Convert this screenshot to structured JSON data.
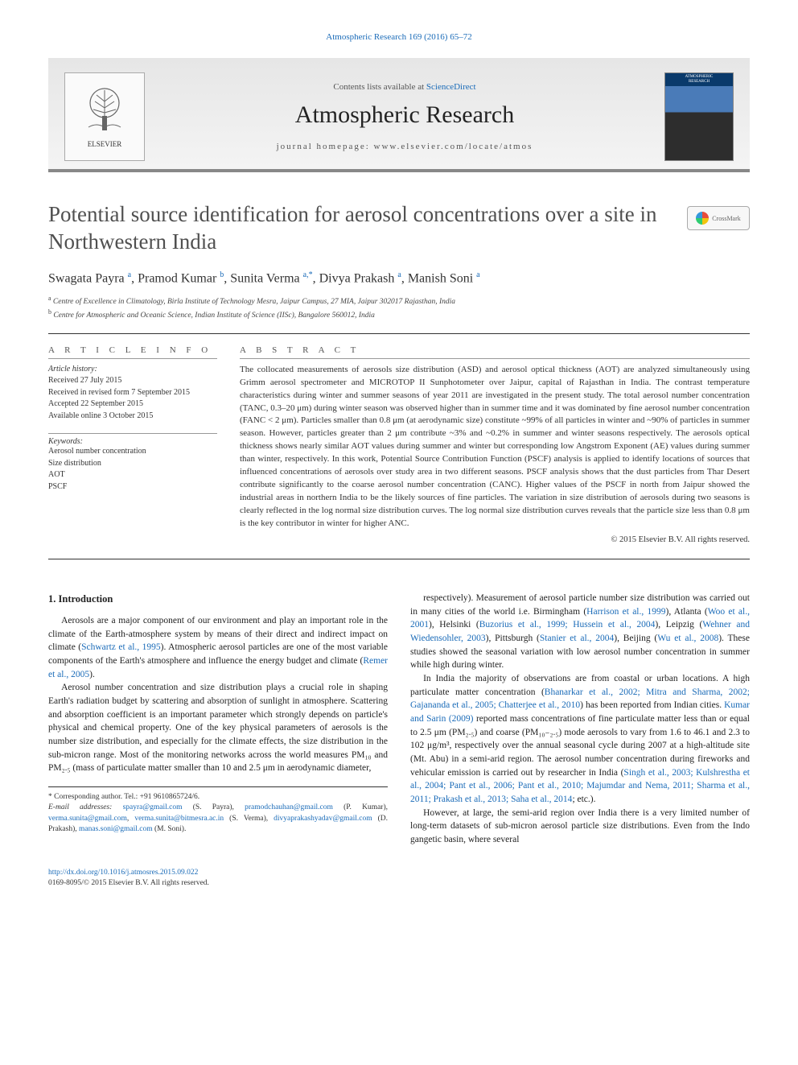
{
  "header": {
    "journal_ref": "Atmospheric Research 169 (2016) 65–72",
    "contents_line_prefix": "Contents lists available at ",
    "contents_line_link": "ScienceDirect",
    "journal_title": "Atmospheric Research",
    "homepage_prefix": "journal homepage: ",
    "homepage_url": "www.elsevier.com/locate/atmos",
    "publisher": "ELSEVIER"
  },
  "crossmark": {
    "label": "CrossMark"
  },
  "article": {
    "title": "Potential source identification for aerosol concentrations over a site in Northwestern India",
    "authors_html": "Swagata Payra <sup>a</sup>, Pramod Kumar <sup>b</sup>, Sunita Verma <sup>a,*</sup>, Divya Prakash <sup>a</sup>, Manish Soni <sup>a</sup>",
    "affiliations": [
      {
        "marker": "a",
        "text": "Centre of Excellence in Climatology, Birla Institute of Technology Mesra, Jaipur Campus, 27 MIA, Jaipur 302017 Rajasthan, India"
      },
      {
        "marker": "b",
        "text": "Centre for Atmospheric and Oceanic Science, Indian Institute of Science (IISc), Bangalore 560012, India"
      }
    ]
  },
  "info": {
    "heading": "A R T I C L E  I N F O",
    "history_label": "Article history:",
    "history": [
      "Received 27 July 2015",
      "Received in revised form 7 September 2015",
      "Accepted 22 September 2015",
      "Available online 3 October 2015"
    ],
    "keywords_label": "Keywords:",
    "keywords": [
      "Aerosol number concentration",
      "Size distribution",
      "AOT",
      "PSCF"
    ]
  },
  "abstract": {
    "heading": "A B S T R A C T",
    "body": "The collocated measurements of aerosols size distribution (ASD) and aerosol optical thickness (AOT) are analyzed simultaneously using Grimm aerosol spectrometer and MICROTOP II Sunphotometer over Jaipur, capital of Rajasthan in India. The contrast temperature characteristics during winter and summer seasons of year 2011 are investigated in the present study. The total aerosol number concentration (TANC, 0.3–20 μm) during winter season was observed higher than in summer time and it was dominated by fine aerosol number concentration (FANC < 2 μm). Particles smaller than 0.8 μm (at aerodynamic size) constitute ~99% of all particles in winter and ~90% of particles in summer season. However, particles greater than 2 μm contribute ~3% and ~0.2% in summer and winter seasons respectively. The aerosols optical thickness shows nearly similar AOT values during summer and winter but corresponding low Angstrom Exponent (AE) values during summer than winter, respectively. In this work, Potential Source Contribution Function (PSCF) analysis is applied to identify locations of sources that influenced concentrations of aerosols over study area in two different seasons. PSCF analysis shows that the dust particles from Thar Desert contribute significantly to the coarse aerosol number concentration (CANC). Higher values of the PSCF in north from Jaipur showed the industrial areas in northern India to be the likely sources of fine particles. The variation in size distribution of aerosols during two seasons is clearly reflected in the log normal size distribution curves. The log normal size distribution curves reveals that the particle size less than 0.8 μm is the key contributor in winter for higher ANC.",
    "copyright": "© 2015 Elsevier B.V. All rights reserved."
  },
  "body": {
    "section_heading": "1. Introduction",
    "p1": "Aerosols are a major component of our environment and play an important role in the climate of the Earth-atmosphere system by means of their direct and indirect impact on climate (",
    "p1_ref1": "Schwartz et al., 1995",
    "p1_tail": "). Atmospheric aerosol particles are one of the most variable components of the Earth's atmosphere and influence the energy budget and climate (",
    "p1_ref2": "Remer et al., 2005",
    "p1_end": ").",
    "p2": "Aerosol number concentration and size distribution plays a crucial role in shaping Earth's radiation budget by scattering and absorption of sunlight in atmosphere. Scattering and absorption coefficient is an important parameter which strongly depends on particle's physical and chemical property. One of the key physical parameters of aerosols is the number size distribution, and especially for the climate effects, the size distribution in the sub-micron range. Most of the monitoring networks across the world measures PM₁₀ and PM₂.₅ (mass of particulate matter smaller than 10 and 2.5 μm in aerodynamic diameter,",
    "p3": "respectively). Measurement of aerosol particle number size distribution was carried out in many cities of the world i.e. Birmingham (",
    "p3_ref1": "Harrison et al., 1999",
    "p3_m1": "), Atlanta (",
    "p3_ref2": "Woo et al., 2001",
    "p3_m2": "), Helsinki (",
    "p3_ref3": "Buzorius et al., 1999; Hussein et al., 2004",
    "p3_m3": "), Leipzig (",
    "p3_ref4": "Wehner and Wiedensohler, 2003",
    "p3_m4": "), Pittsburgh (",
    "p3_ref5": "Stanier et al., 2004",
    "p3_m5": "), Beijing (",
    "p3_ref6": "Wu et al., 2008",
    "p3_tail": "). These studies showed the seasonal variation with low aerosol number concentration in summer while high during winter.",
    "p4": "In India the majority of observations are from coastal or urban locations. A high particulate matter concentration (",
    "p4_ref1": "Bhanarkar et al., 2002; Mitra and Sharma, 2002; Gajananda et al., 2005; Chatterjee et al., 2010",
    "p4_m1": ") has been reported from Indian cities. ",
    "p4_ref2": "Kumar and Sarin (2009)",
    "p4_tail": " reported mass concentrations of fine particulate matter less than or equal to 2.5 μm (PM₂.₅) and coarse (PM₁₀₋₂.₅) mode aerosols to vary from 1.6 to 46.1 and 2.3 to 102 μg/m³, respectively over the annual seasonal cycle during 2007 at a high-altitude site (Mt. Abu) in a semi-arid region. The aerosol number concentration during fireworks and vehicular emission is carried out by researcher in India (",
    "p4_ref3": "Singh et al., 2003; Kulshrestha et al., 2004; Pant et al., 2006; Pant et al., 2010; Majumdar and Nema, 2011; Sharma et al., 2011; Prakash et al., 2013; Saha et al., 2014",
    "p4_end": "; etc.).",
    "p5": "However, at large, the semi-arid region over India there is a very limited number of long-term datasets of sub-micron aerosol particle size distributions. Even from the Indo gangetic basin, where several"
  },
  "footnote": {
    "corr": "* Corresponding author. Tel.: +91 9610865724/6.",
    "emails_label": "E-mail addresses:",
    "emails": [
      {
        "addr": "spayra@gmail.com",
        "who": "(S. Payra)"
      },
      {
        "addr": "pramodchauhan@gmail.com",
        "who": "(P. Kumar)"
      },
      {
        "addr": "verma.sunita@gmail.com",
        "who": ""
      },
      {
        "addr": "verma.sunita@bitmesra.ac.in",
        "who": "(S. Verma)"
      },
      {
        "addr": "divyaprakashyadav@gmail.com",
        "who": "(D. Prakash)"
      },
      {
        "addr": "manas.soni@gmail.com",
        "who": "(M. Soni)"
      }
    ]
  },
  "footer": {
    "doi": "http://dx.doi.org/10.1016/j.atmosres.2015.09.022",
    "issn_line": "0169-8095/© 2015 Elsevier B.V. All rights reserved."
  },
  "colors": {
    "link": "#1a6bb8",
    "text": "#333333",
    "rule": "#333333",
    "bg": "#ffffff"
  }
}
